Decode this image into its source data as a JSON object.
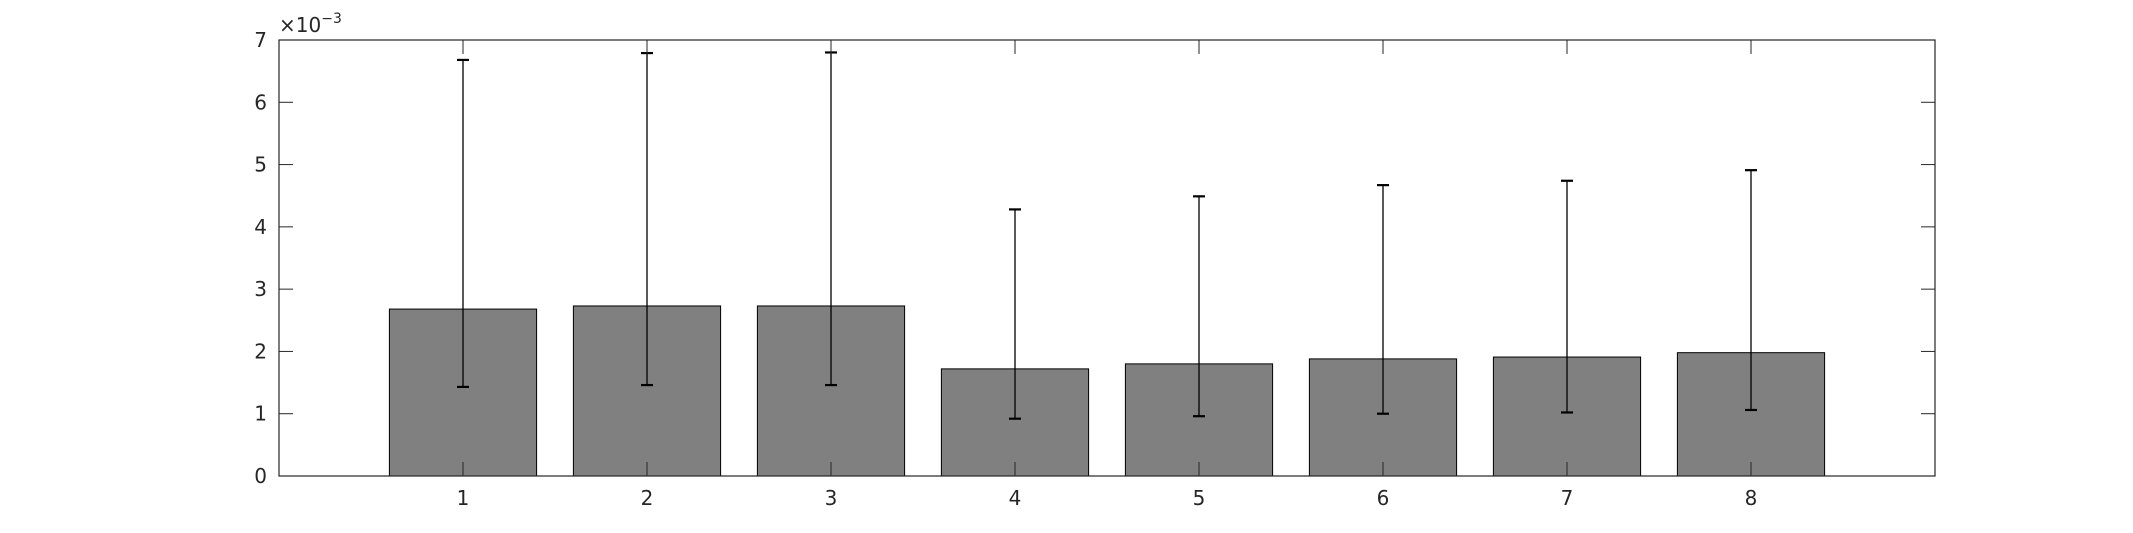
{
  "chart_data": {
    "type": "bar",
    "title": "",
    "xlabel": "",
    "ylabel": "",
    "categories": [
      "1",
      "2",
      "3",
      "4",
      "5",
      "6",
      "7",
      "8"
    ],
    "values": [
      0.00268,
      0.00273,
      0.00273,
      0.00172,
      0.0018,
      0.00188,
      0.00191,
      0.00198
    ],
    "error_lower": [
      0.00143,
      0.00146,
      0.00146,
      0.00092,
      0.00096,
      0.001,
      0.00102,
      0.00106
    ],
    "error_upper": [
      0.00668,
      0.00679,
      0.0068,
      0.00428,
      0.00449,
      0.00467,
      0.00474,
      0.00491
    ],
    "xlim": [
      0,
      9
    ],
    "ylim": [
      0,
      0.007
    ],
    "y_ticks": [
      "0",
      "1",
      "2",
      "3",
      "4",
      "5",
      "6",
      "7"
    ],
    "y_exponent_label": "×10",
    "y_exponent_power": "−3",
    "bar_color": "#808080",
    "grid": false,
    "legend": "none"
  }
}
